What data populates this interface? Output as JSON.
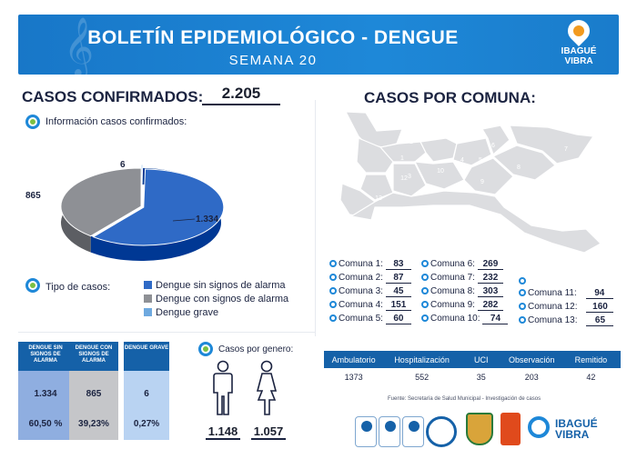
{
  "header": {
    "title": "BOLETÍN EPIDEMIOLÓGICO - DENGUE",
    "week": "SEMANA 20",
    "logo_line1": "IBAGUÉ",
    "logo_line2": "VIBRA"
  },
  "confirmed": {
    "title": "CASOS CONFIRMADOS:",
    "total": "2.205",
    "info_label": "Información casos confirmados:"
  },
  "chart_data": {
    "type": "pie",
    "slices": [
      {
        "name": "Dengue sin signos de alarma",
        "value": 1334,
        "label": "1.334",
        "color": "#2f6ac6"
      },
      {
        "name": "Dengue con signos de alarma",
        "value": 865,
        "label": "865",
        "color": "#8e9095"
      },
      {
        "name": "Dengue grave",
        "value": 6,
        "label": "6",
        "color": "#6ea9df"
      }
    ]
  },
  "types": {
    "label": "Tipo de casos:",
    "items": [
      {
        "label": "Dengue sin signos de alarma",
        "color": "#2f6ac6"
      },
      {
        "label": "Dengue con signos de alarma",
        "color": "#8e9095"
      },
      {
        "label": "Dengue grave",
        "color": "#6ea9df"
      }
    ]
  },
  "stats": [
    {
      "head": "DENGUE SIN SIGNOS DE ALARMA",
      "count": "1.334",
      "pct": "60,50 %",
      "color": "#8faee0"
    },
    {
      "head": "DENGUE CON SIGNOS DE ALARMA",
      "count": "865",
      "pct": "39,23%",
      "color": "#c5c6c9"
    },
    {
      "head": "DENGUE GRAVE",
      "count": "6",
      "pct": "0,27%",
      "color": "#b9d3f2"
    }
  ],
  "gender": {
    "label": "Casos por genero:",
    "male": "1.148",
    "female": "1.057"
  },
  "comuna": {
    "title": "CASOS POR COMUNA:",
    "map_numbers": [
      "1",
      "2",
      "3",
      "4",
      "5",
      "6",
      "7",
      "8",
      "9",
      "10",
      "11",
      "12",
      "13"
    ],
    "col1": [
      {
        "label": "Comuna 1:",
        "value": "83"
      },
      {
        "label": "Comuna 2:",
        "value": "87"
      },
      {
        "label": "Comuna 3:",
        "value": "45"
      },
      {
        "label": "Comuna 4:",
        "value": "151"
      },
      {
        "label": "Comuna 5:",
        "value": "60"
      }
    ],
    "col2": [
      {
        "label": "Comuna 6:",
        "value": "269"
      },
      {
        "label": "Comuna 7:",
        "value": "232"
      },
      {
        "label": "Comuna 8:",
        "value": "303"
      },
      {
        "label": "Comuna 9:",
        "value": "282"
      },
      {
        "label": "Comuna 10:",
        "value": "74"
      }
    ],
    "col3": [
      {
        "label": "Comuna 11:",
        "value": "94"
      },
      {
        "label": "Comuna 12:",
        "value": "160"
      },
      {
        "label": "Comuna 13:",
        "value": "65"
      }
    ]
  },
  "services": {
    "headers": [
      "Ambulatorio",
      "Hospitalización",
      "UCI",
      "Observación",
      "Remitido"
    ],
    "values": [
      "1373",
      "552",
      "35",
      "203",
      "42"
    ]
  },
  "source": "Fuente: Secretaría de Salud Municipal - Investigación de casos",
  "colors": {
    "header": "#1e88d8",
    "dark": "#1561a8",
    "accent": "#f29a1f"
  }
}
